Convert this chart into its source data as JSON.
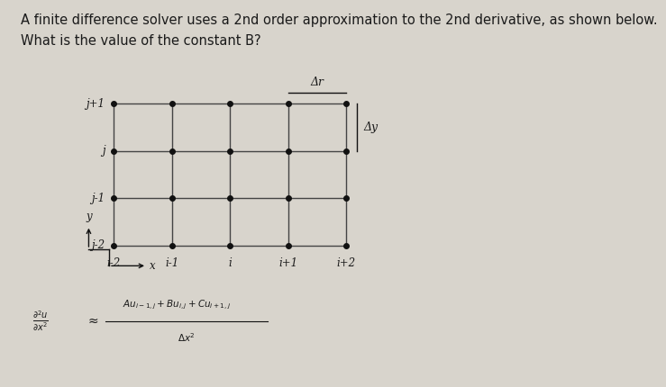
{
  "bg_color": "#d8d4cc",
  "text_color": "#1a1a1a",
  "title_line1": "A finite difference solver uses a 2nd order approximation to the 2nd derivative, as shown below.",
  "title_line2": "What is the value of the constant B?",
  "title_fontsize": 10.5,
  "grid_x_labels": [
    "i-2",
    "i-1",
    "i",
    "i+1",
    "i+2"
  ],
  "grid_y_labels": [
    "j-2",
    "j-1",
    "j",
    "j+1"
  ],
  "grid_color": "#444444",
  "dot_color": "#111111",
  "arrow_dx_label": "Δr",
  "arrow_dy_label": "Δy",
  "x_axis_label": "x",
  "y_axis_label": "y",
  "formula_lhs": "$\\frac{\\partial^2 u}{\\partial x^2}$",
  "formula_approx": "≈",
  "formula_rhs_num": "$Au_{i-1,j}+Bu_{i,j}+Cu_{i+1,j}$",
  "formula_rhs_den": "$\\Delta x^2$",
  "formula_fontsize": 9
}
